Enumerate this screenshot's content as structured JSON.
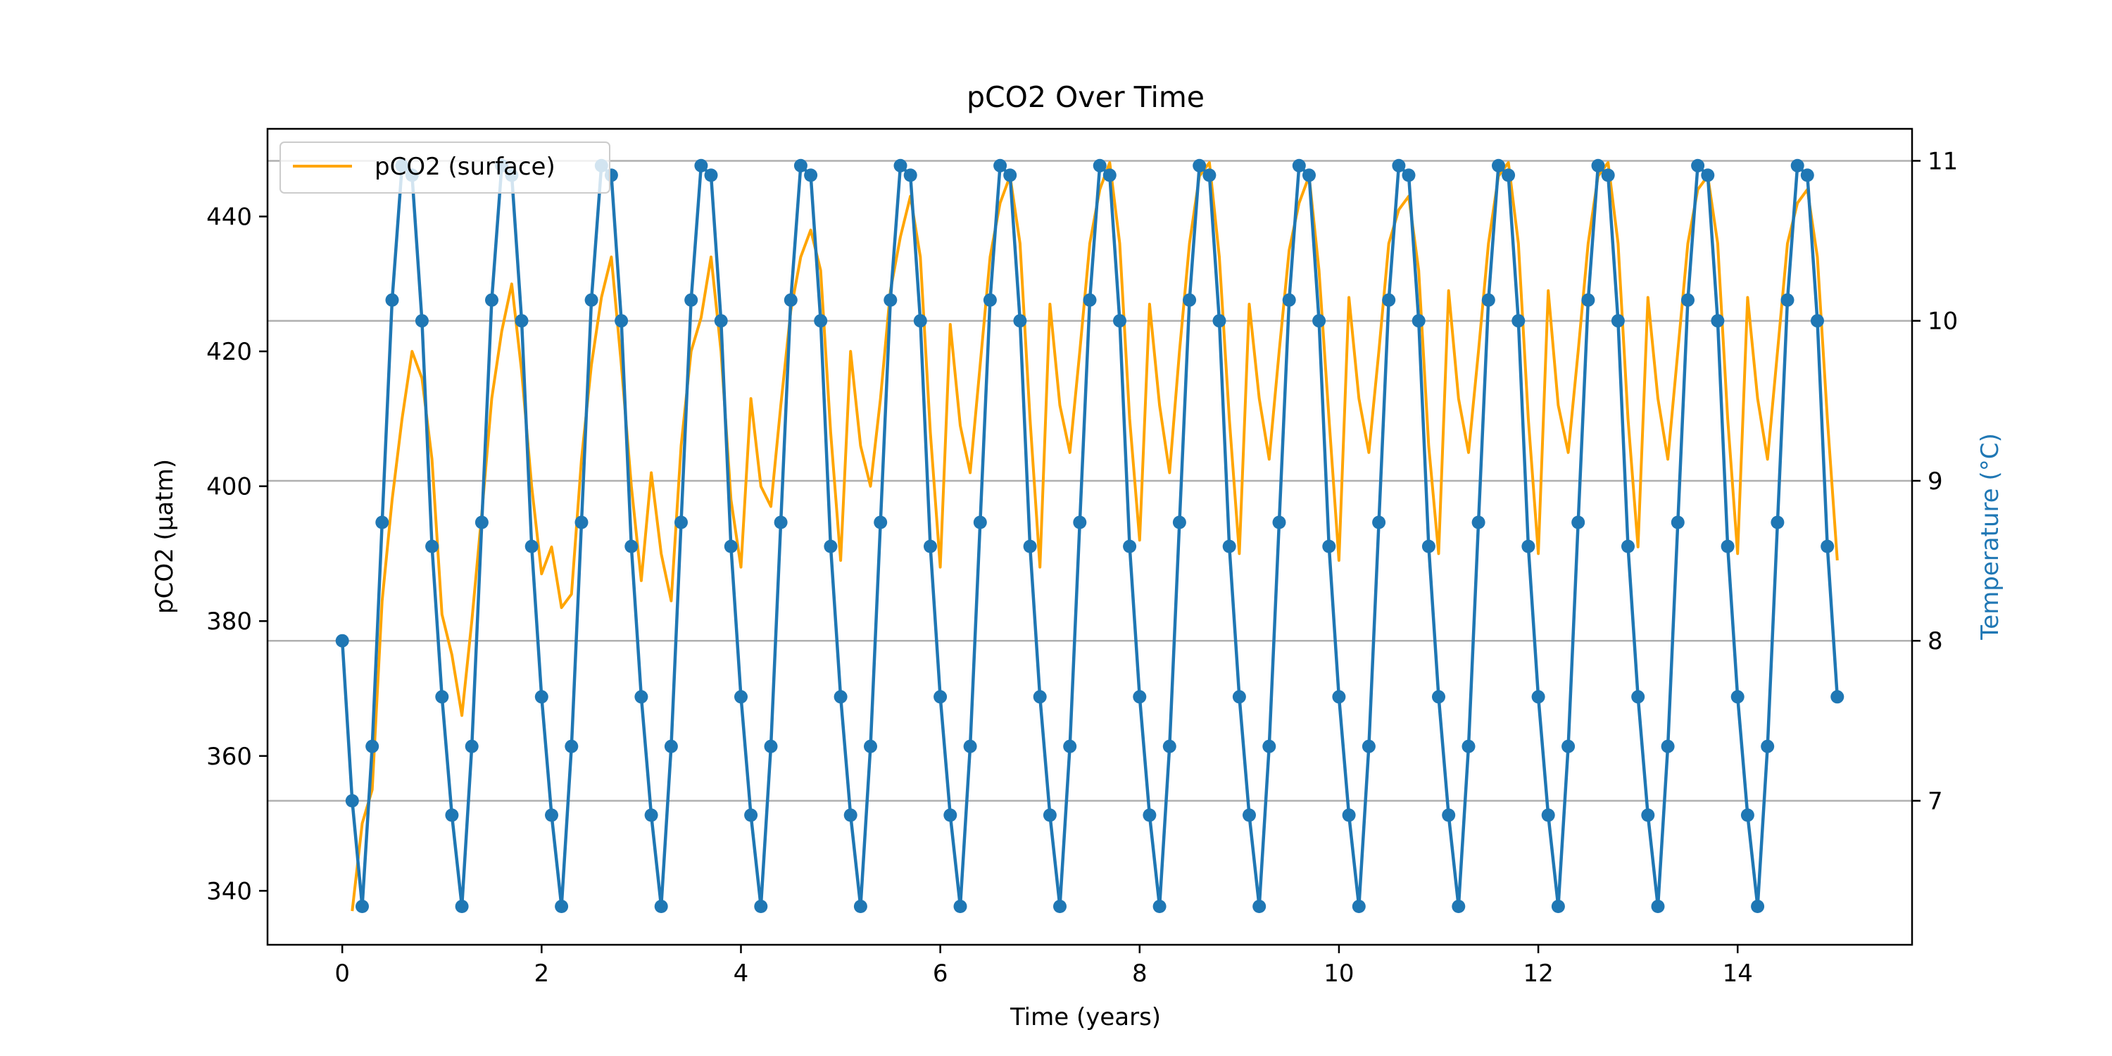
{
  "chart_data": {
    "type": "line",
    "title": "pCO2 Over Time",
    "xlabel": "Time (years)",
    "ylabel": "pCO2 (µatm)",
    "y2label": "Temperature (°C)",
    "xlim": [
      -0.75,
      15.75
    ],
    "ylim": [
      332,
      453
    ],
    "y2lim": [
      6.1,
      11.2
    ],
    "x_ticks": [
      0,
      2,
      4,
      6,
      8,
      10,
      12,
      14
    ],
    "y_ticks": [
      340,
      360,
      380,
      400,
      420,
      440
    ],
    "y2_ticks": [
      7,
      8,
      9,
      10,
      11
    ],
    "grid": "horizontal lines at right-axis ticks",
    "legend": {
      "position": "upper left",
      "entries": [
        "pCO2 (surface)"
      ]
    },
    "colors": {
      "pco2": "#ffa500",
      "temperature": "#1f77b4",
      "ylabel2": "#1f77b4"
    },
    "series": [
      {
        "name": "pCO2 (surface)",
        "axis": "left",
        "x": [
          0.1,
          0.2,
          0.3,
          0.4,
          0.5,
          0.6,
          0.7,
          0.8,
          0.9,
          1.0,
          1.1,
          1.2,
          1.3,
          1.4,
          1.5,
          1.6,
          1.7,
          1.8,
          1.9,
          2.0,
          2.1,
          2.2,
          2.3,
          2.4,
          2.5,
          2.6,
          2.7,
          2.8,
          2.9,
          3.0,
          3.1,
          3.2,
          3.3,
          3.4,
          3.5,
          3.6,
          3.7,
          3.8,
          3.9,
          4.0,
          4.1,
          4.2,
          4.3,
          4.4,
          4.5,
          4.6,
          4.7,
          4.8,
          4.9,
          5.0,
          5.1,
          5.2,
          5.3,
          5.4,
          5.5,
          5.6,
          5.7,
          5.8,
          5.9,
          6.0,
          6.1,
          6.2,
          6.3,
          6.4,
          6.5,
          6.6,
          6.7,
          6.8,
          6.9,
          7.0,
          7.1,
          7.2,
          7.3,
          7.4,
          7.5,
          7.6,
          7.7,
          7.8,
          7.9,
          8.0,
          8.1,
          8.2,
          8.3,
          8.4,
          8.5,
          8.6,
          8.7,
          8.8,
          8.9,
          9.0,
          9.1,
          9.2,
          9.3,
          9.4,
          9.5,
          9.6,
          9.7,
          9.8,
          9.9,
          10.0,
          10.1,
          10.2,
          10.3,
          10.4,
          10.5,
          10.6,
          10.7,
          10.8,
          10.9,
          11.0,
          11.1,
          11.2,
          11.3,
          11.4,
          11.5,
          11.6,
          11.7,
          11.8,
          11.9,
          12.0,
          12.1,
          12.2,
          12.3,
          12.4,
          12.5,
          12.6,
          12.7,
          12.8,
          12.9,
          13.0,
          13.1,
          13.2,
          13.3,
          13.4,
          13.5,
          13.6,
          13.7,
          13.8,
          13.9,
          14.0,
          14.1,
          14.2,
          14.3,
          14.4,
          14.5,
          14.6,
          14.7,
          14.8,
          14.9,
          15.0
        ],
        "y": [
          337,
          350,
          355,
          383,
          398,
          410,
          420,
          416,
          404,
          381,
          375,
          366,
          380,
          396,
          413,
          423,
          430,
          417,
          400,
          387,
          391,
          382,
          384,
          404,
          418,
          428,
          434,
          418,
          400,
          386,
          402,
          390,
          383,
          406,
          420,
          425,
          434,
          420,
          398,
          388,
          413,
          400,
          397,
          412,
          426,
          434,
          438,
          432,
          408,
          389,
          420,
          406,
          400,
          413,
          429,
          437,
          443,
          434,
          408,
          388,
          424,
          409,
          402,
          418,
          434,
          442,
          446,
          436,
          410,
          388,
          427,
          412,
          405,
          420,
          436,
          444,
          448,
          436,
          410,
          392,
          427,
          412,
          402,
          420,
          436,
          446,
          448,
          434,
          410,
          390,
          427,
          413,
          404,
          420,
          435,
          442,
          446,
          432,
          410,
          389,
          428,
          413,
          405,
          420,
          436,
          441,
          443,
          432,
          406,
          390,
          429,
          413,
          405,
          420,
          436,
          446,
          448,
          436,
          410,
          390,
          429,
          412,
          405,
          420,
          436,
          446,
          448,
          436,
          410,
          391,
          428,
          413,
          404,
          420,
          436,
          444,
          446,
          436,
          410,
          390,
          428,
          413,
          404,
          420,
          436,
          442,
          444,
          434,
          410,
          389
        ]
      },
      {
        "name": "",
        "axis": "right",
        "x": [
          0.0,
          0.1,
          0.2,
          0.3,
          0.4,
          0.5,
          0.6,
          0.7,
          0.8,
          0.9,
          1.0,
          1.1,
          1.2,
          1.3,
          1.4,
          1.5,
          1.6,
          1.7,
          1.8,
          1.9,
          2.0,
          2.1,
          2.2,
          2.3,
          2.4,
          2.5,
          2.6,
          2.7,
          2.8,
          2.9,
          3.0,
          3.1,
          3.2,
          3.3,
          3.4,
          3.5,
          3.6,
          3.7,
          3.8,
          3.9,
          4.0,
          4.1,
          4.2,
          4.3,
          4.4,
          4.5,
          4.6,
          4.7,
          4.8,
          4.9,
          5.0,
          5.1,
          5.2,
          5.3,
          5.4,
          5.5,
          5.6,
          5.7,
          5.8,
          5.9,
          6.0,
          6.1,
          6.2,
          6.3,
          6.4,
          6.5,
          6.6,
          6.7,
          6.8,
          6.9,
          7.0,
          7.1,
          7.2,
          7.3,
          7.4,
          7.5,
          7.6,
          7.7,
          7.8,
          7.9,
          8.0,
          8.1,
          8.2,
          8.3,
          8.4,
          8.5,
          8.6,
          8.7,
          8.8,
          8.9,
          9.0,
          9.1,
          9.2,
          9.3,
          9.4,
          9.5,
          9.6,
          9.7,
          9.8,
          9.9,
          10.0,
          10.1,
          10.2,
          10.3,
          10.4,
          10.5,
          10.6,
          10.7,
          10.8,
          10.9,
          11.0,
          11.1,
          11.2,
          11.3,
          11.4,
          11.5,
          11.6,
          11.7,
          11.8,
          11.9,
          12.0,
          12.1,
          12.2,
          12.3,
          12.4,
          12.5,
          12.6,
          12.7,
          12.8,
          12.9,
          13.0,
          13.1,
          13.2,
          13.3,
          13.4,
          13.5,
          13.6,
          13.7,
          13.8,
          13.9,
          14.0,
          14.1,
          14.2,
          14.3,
          14.4,
          14.5,
          14.6,
          14.7,
          14.8,
          14.9,
          15.0
        ],
        "y": [
          8.0,
          7.0,
          6.34,
          7.34,
          8.74,
          10.13,
          10.97,
          10.91,
          10.0,
          8.59,
          7.65,
          6.91,
          6.34,
          7.34,
          8.74,
          10.13,
          10.97,
          10.91,
          10.0,
          8.59,
          7.65,
          6.91,
          6.34,
          7.34,
          8.74,
          10.13,
          10.97,
          10.91,
          10.0,
          8.59,
          7.65,
          6.91,
          6.34,
          7.34,
          8.74,
          10.13,
          10.97,
          10.91,
          10.0,
          8.59,
          7.65,
          6.91,
          6.34,
          7.34,
          8.74,
          10.13,
          10.97,
          10.91,
          10.0,
          8.59,
          7.65,
          6.91,
          6.34,
          7.34,
          8.74,
          10.13,
          10.97,
          10.91,
          10.0,
          8.59,
          7.65,
          6.91,
          6.34,
          7.34,
          8.74,
          10.13,
          10.97,
          10.91,
          10.0,
          8.59,
          7.65,
          6.91,
          6.34,
          7.34,
          8.74,
          10.13,
          10.97,
          10.91,
          10.0,
          8.59,
          7.65,
          6.91,
          6.34,
          7.34,
          8.74,
          10.13,
          10.97,
          10.91,
          10.0,
          8.59,
          7.65,
          6.91,
          6.34,
          7.34,
          8.74,
          10.13,
          10.97,
          10.91,
          10.0,
          8.59,
          7.65,
          6.91,
          6.34,
          7.34,
          8.74,
          10.13,
          10.97,
          10.91,
          10.0,
          8.59,
          7.65,
          6.91,
          6.34,
          7.34,
          8.74,
          10.13,
          10.97,
          10.91,
          10.0,
          8.59,
          7.65,
          6.91,
          6.34,
          7.34,
          8.74,
          10.13,
          10.97,
          10.91,
          10.0,
          8.59,
          7.65,
          6.91,
          6.34,
          7.34,
          8.74,
          10.13,
          10.97,
          10.91,
          10.0,
          8.59,
          7.65,
          6.91,
          6.34,
          7.34,
          8.74,
          10.13,
          10.97,
          10.91,
          10.0,
          8.59,
          7.65
        ]
      }
    ]
  }
}
